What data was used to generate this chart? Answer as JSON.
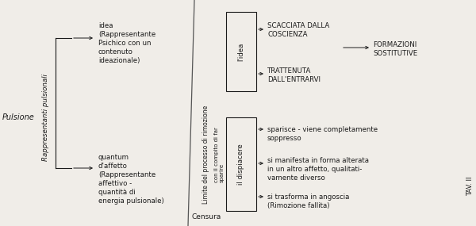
{
  "bg_color": "#f0ede8",
  "text_color": "#1a1a1a",
  "pulsione_label": "Pulsione",
  "rappresentanti_label": "Rappresentanti pulsionali",
  "idea_label": "idea\n(Rappresentante\nPsichico con un\ncontenuto\nideazionale)",
  "quantum_label": "quantum\nd'affetto\n(Rappresentante\naffettivo -\nquantità di\nenergia pulsionale)",
  "limite_label": "Limite del processo di rimozione",
  "compito_label": "con il compito di far\nsparire",
  "censura_label": "Censura",
  "lidea_box_label": "l'idea",
  "dispiacere_box_label": "il dispiacere",
  "scacciata_label": "SCACCIATA DALLA\nCOSCIENZA",
  "trattenuta_label": "TRATTENUTA\nDALL'ENTRARVI",
  "formazioni_label": "FORMAZIONI\nSOSTITUTIVE",
  "sparisce_label": "sparisce - viene completamente\nsoppresso",
  "manifesta_label": "si manifesta in forma alterata\nin un altro affetto, qualitati-\nvamente diverso",
  "trasforma_label": "si trasforma in angoscia\n(Rimozione fallita)",
  "tavola_label": "TAV. II"
}
